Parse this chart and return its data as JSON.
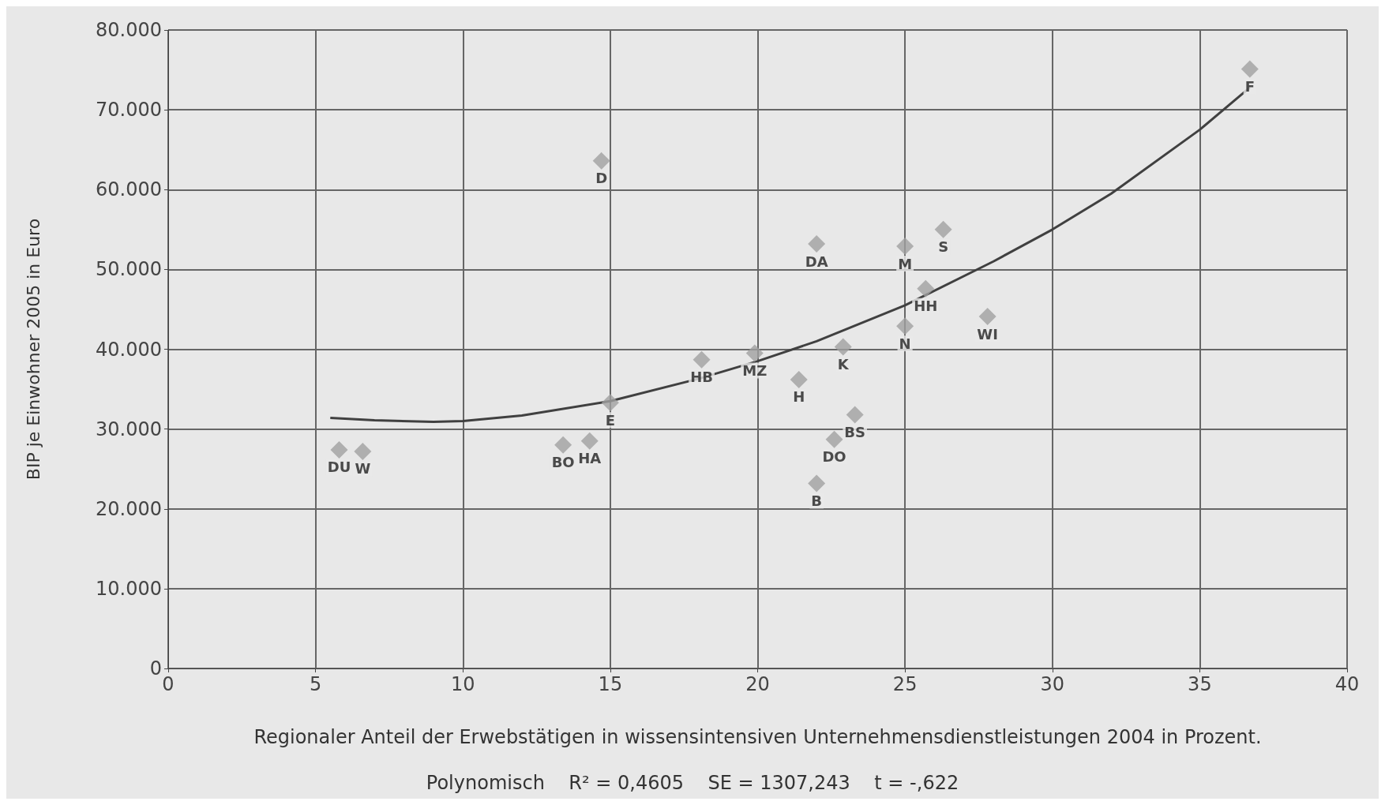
{
  "chart_data": {
    "type": "scatter",
    "xlabel": "Regionaler Anteil der Erwebstätigen in wissensintensiven Unternehmensdienstleistungen 2004 in Prozent.",
    "ylabel": "BIP je Einwohner 2005 in Euro",
    "xlim": [
      0,
      40
    ],
    "xticks": [
      0,
      5,
      10,
      15,
      20,
      25,
      30,
      35,
      40
    ],
    "ylim": [
      0,
      80000
    ],
    "yticks": [
      {
        "value": 0,
        "label": "0"
      },
      {
        "value": 10000,
        "label": "10.000"
      },
      {
        "value": 20000,
        "label": "20.000"
      },
      {
        "value": 30000,
        "label": "30.000"
      },
      {
        "value": 40000,
        "label": "40.000"
      },
      {
        "value": 50000,
        "label": "50.000"
      },
      {
        "value": 60000,
        "label": "60.000"
      },
      {
        "value": 70000,
        "label": "70.000"
      },
      {
        "value": 80000,
        "label": "80.000"
      }
    ],
    "grid": true,
    "series": [
      {
        "marker": "diamond",
        "color": "#a0a0a0",
        "x": [
          5.8,
          6.6,
          13.4,
          14.3,
          14.7,
          15.0,
          18.1,
          19.9,
          21.4,
          22.0,
          22.0,
          22.6,
          22.9,
          23.3,
          25.0,
          25.0,
          25.7,
          26.3,
          27.8,
          36.7
        ],
        "values": [
          27400,
          27200,
          28000,
          28500,
          63600,
          33300,
          38700,
          39500,
          36200,
          53200,
          23200,
          28700,
          40300,
          31800,
          52900,
          42900,
          47600,
          55000,
          44100,
          75100
        ]
      },
      {
        "type": "line",
        "color": "#404040",
        "x": [
          5.5,
          7,
          9,
          10,
          12,
          15,
          18,
          20,
          22,
          25,
          28,
          30,
          32,
          35,
          36.7
        ],
        "values": [
          31400,
          31100,
          30900,
          31000,
          31700,
          33500,
          36300,
          38500,
          41000,
          45500,
          51000,
          55000,
          59500,
          67500,
          72800
        ]
      }
    ],
    "annotations": [
      {
        "text": "DU",
        "x": 5.8,
        "y": 27400
      },
      {
        "text": "W",
        "x": 6.6,
        "y": 27200
      },
      {
        "text": "BO",
        "x": 13.4,
        "y": 28000
      },
      {
        "text": "HA",
        "x": 14.3,
        "y": 28500
      },
      {
        "text": "D",
        "x": 14.7,
        "y": 63600
      },
      {
        "text": "E",
        "x": 15.0,
        "y": 33300
      },
      {
        "text": "HB",
        "x": 18.1,
        "y": 38700
      },
      {
        "text": "MZ",
        "x": 19.9,
        "y": 39500
      },
      {
        "text": "H",
        "x": 21.4,
        "y": 36200
      },
      {
        "text": "DA",
        "x": 22.0,
        "y": 53200
      },
      {
        "text": "B",
        "x": 22.0,
        "y": 23200
      },
      {
        "text": "DO",
        "x": 22.6,
        "y": 28700
      },
      {
        "text": "K",
        "x": 22.9,
        "y": 40300
      },
      {
        "text": "BS",
        "x": 23.3,
        "y": 31800
      },
      {
        "text": "M",
        "x": 25.0,
        "y": 52900
      },
      {
        "text": "N",
        "x": 25.0,
        "y": 42900
      },
      {
        "text": "HH",
        "x": 25.7,
        "y": 47600
      },
      {
        "text": "S",
        "x": 26.3,
        "y": 55000
      },
      {
        "text": "WI",
        "x": 27.8,
        "y": 44100
      },
      {
        "text": "F",
        "x": 36.7,
        "y": 75100
      },
      "Polynomisch    R² = 0,4605    SE = 1307,243    t = -,622"
    ]
  }
}
